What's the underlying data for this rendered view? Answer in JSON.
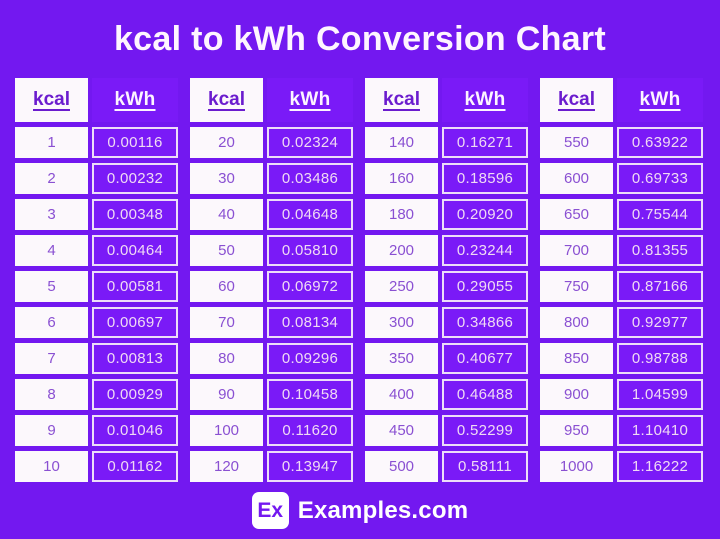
{
  "title": "kcal to kWh Conversion Chart",
  "columns": {
    "kcal_label": "kcal",
    "kwh_label": "kWh"
  },
  "footer": {
    "badge": "Ex",
    "site": "Examples.com"
  },
  "colors": {
    "background": "#7318F0",
    "kwh_cell_fill": "#7A1AF7",
    "kcal_cell_fill": "#FCF8FC",
    "kcal_text": "#8A50D2",
    "kcal_header_text": "#6B1CCE",
    "kwh_text": "#F0DAF4",
    "kwh_header_text": "#FDF4FF",
    "title_text": "#FEF5FF",
    "cell_border": "#EDDDF8"
  },
  "tables": [
    {
      "rows": [
        [
          "1",
          "0.00116"
        ],
        [
          "2",
          "0.00232"
        ],
        [
          "3",
          "0.00348"
        ],
        [
          "4",
          "0.00464"
        ],
        [
          "5",
          "0.00581"
        ],
        [
          "6",
          "0.00697"
        ],
        [
          "7",
          "0.00813"
        ],
        [
          "8",
          "0.00929"
        ],
        [
          "9",
          "0.01046"
        ],
        [
          "10",
          "0.01162"
        ]
      ]
    },
    {
      "rows": [
        [
          "20",
          "0.02324"
        ],
        [
          "30",
          "0.03486"
        ],
        [
          "40",
          "0.04648"
        ],
        [
          "50",
          "0.05810"
        ],
        [
          "60",
          "0.06972"
        ],
        [
          "70",
          "0.08134"
        ],
        [
          "80",
          "0.09296"
        ],
        [
          "90",
          "0.10458"
        ],
        [
          "100",
          "0.11620"
        ],
        [
          "120",
          "0.13947"
        ]
      ]
    },
    {
      "rows": [
        [
          "140",
          "0.16271"
        ],
        [
          "160",
          "0.18596"
        ],
        [
          "180",
          "0.20920"
        ],
        [
          "200",
          "0.23244"
        ],
        [
          "250",
          "0.29055"
        ],
        [
          "300",
          "0.34866"
        ],
        [
          "350",
          "0.40677"
        ],
        [
          "400",
          "0.46488"
        ],
        [
          "450",
          "0.52299"
        ],
        [
          "500",
          "0.58111"
        ]
      ]
    },
    {
      "rows": [
        [
          "550",
          "0.63922"
        ],
        [
          "600",
          "0.69733"
        ],
        [
          "650",
          "0.75544"
        ],
        [
          "700",
          "0.81355"
        ],
        [
          "750",
          "0.87166"
        ],
        [
          "800",
          "0.92977"
        ],
        [
          "850",
          "0.98788"
        ],
        [
          "900",
          "1.04599"
        ],
        [
          "950",
          "1.10410"
        ],
        [
          "1000",
          "1.16222"
        ]
      ]
    }
  ],
  "chart_data": {
    "type": "table",
    "title": "kcal to kWh Conversion Chart",
    "columns": [
      "kcal",
      "kWh"
    ],
    "rows": [
      [
        1,
        0.00116
      ],
      [
        2,
        0.00232
      ],
      [
        3,
        0.00348
      ],
      [
        4,
        0.00464
      ],
      [
        5,
        0.00581
      ],
      [
        6,
        0.00697
      ],
      [
        7,
        0.00813
      ],
      [
        8,
        0.00929
      ],
      [
        9,
        0.01046
      ],
      [
        10,
        0.01162
      ],
      [
        20,
        0.02324
      ],
      [
        30,
        0.03486
      ],
      [
        40,
        0.04648
      ],
      [
        50,
        0.0581
      ],
      [
        60,
        0.06972
      ],
      [
        70,
        0.08134
      ],
      [
        80,
        0.09296
      ],
      [
        90,
        0.10458
      ],
      [
        100,
        0.1162
      ],
      [
        120,
        0.13947
      ],
      [
        140,
        0.16271
      ],
      [
        160,
        0.18596
      ],
      [
        180,
        0.2092
      ],
      [
        200,
        0.23244
      ],
      [
        250,
        0.29055
      ],
      [
        300,
        0.34866
      ],
      [
        350,
        0.40677
      ],
      [
        400,
        0.46488
      ],
      [
        450,
        0.52299
      ],
      [
        500,
        0.58111
      ],
      [
        550,
        0.63922
      ],
      [
        600,
        0.69733
      ],
      [
        650,
        0.75544
      ],
      [
        700,
        0.81355
      ],
      [
        750,
        0.87166
      ],
      [
        800,
        0.92977
      ],
      [
        850,
        0.98788
      ],
      [
        900,
        1.04599
      ],
      [
        950,
        1.1041
      ],
      [
        1000,
        1.16222
      ]
    ]
  }
}
